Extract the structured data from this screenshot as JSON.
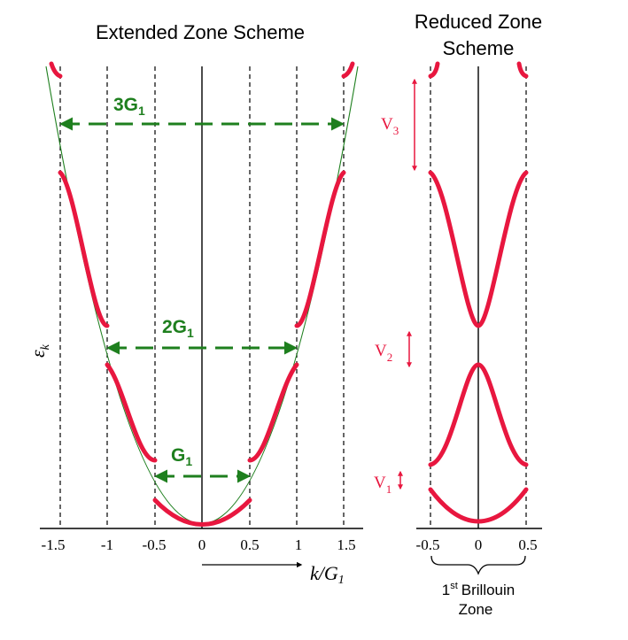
{
  "left_panel": {
    "title": "Extended Zone Scheme",
    "y_label": "ε",
    "y_label_sub": "k",
    "x_label_main": "k/G",
    "x_label_sub": "1",
    "x_ticks": [
      "-1.5",
      "-1",
      "-0.5",
      "0",
      "0.5",
      "1",
      "1.5"
    ],
    "g_arrows": [
      {
        "label": "3G",
        "sub": "1"
      },
      {
        "label": "2G",
        "sub": "1"
      },
      {
        "label": "G",
        "sub": "1"
      }
    ]
  },
  "right_panel": {
    "title_line1": "Reduced Zone",
    "title_line2": "Scheme",
    "x_ticks": [
      "-0.5",
      "0",
      "0.5"
    ],
    "gaps": [
      {
        "label": "V",
        "sub": "3"
      },
      {
        "label": "V",
        "sub": "2"
      },
      {
        "label": "V",
        "sub": "1"
      }
    ],
    "brillouin_sup": "st",
    "brillouin_line1_a": "1",
    "brillouin_line1_b": "Brillouin",
    "brillouin_line2": "Zone"
  },
  "colors": {
    "band": "#e8173f",
    "parabola": "#1e7f1e",
    "arrow": "#1e7f1e",
    "gap_arrow": "#e8173f"
  }
}
